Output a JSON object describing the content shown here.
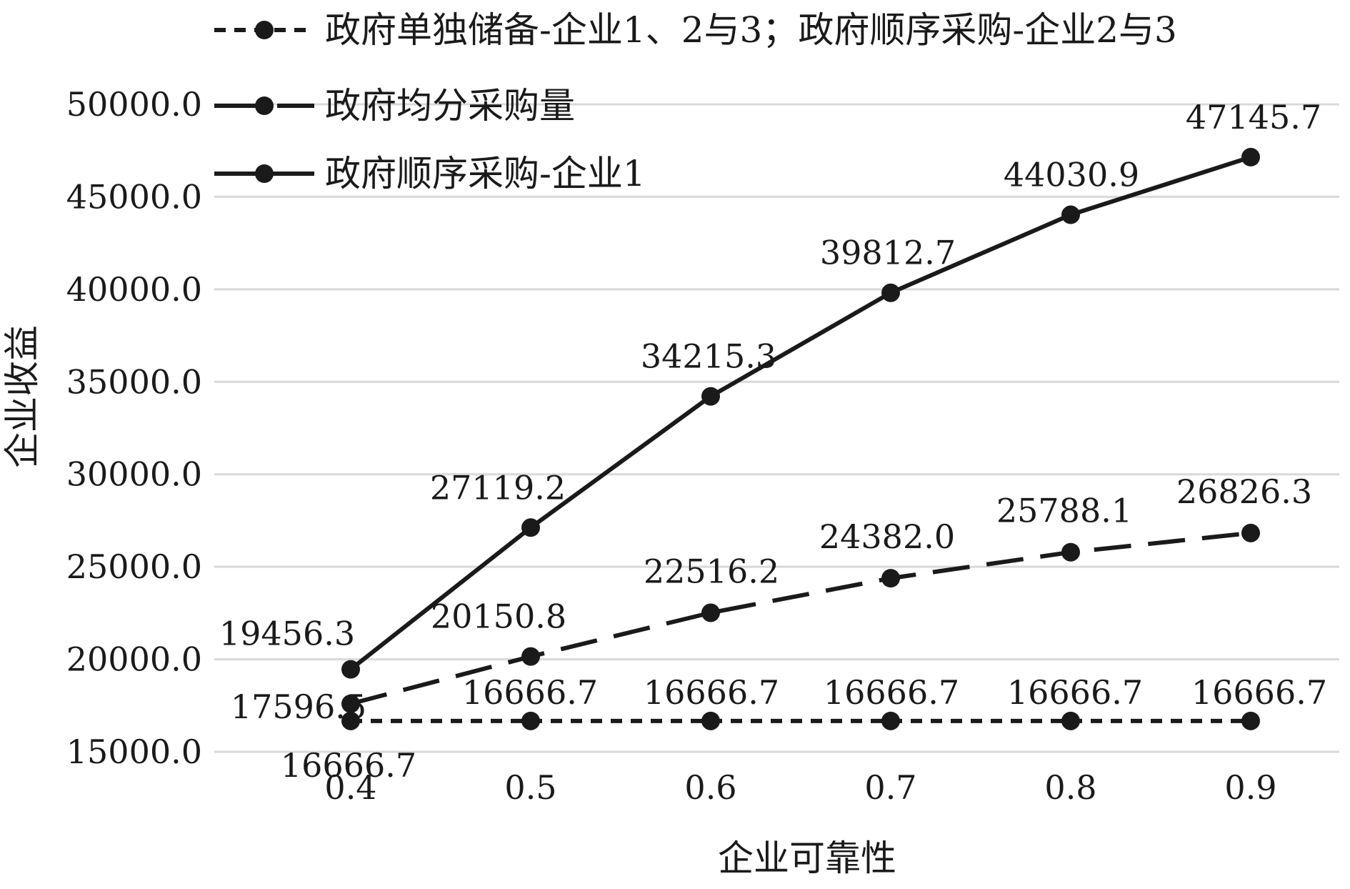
{
  "chart_data": {
    "type": "line",
    "title": "",
    "xlabel": "企业可靠性",
    "ylabel": "企业收益",
    "x": [
      "0.4",
      "0.5",
      "0.6",
      "0.7",
      "0.8",
      "0.9"
    ],
    "ylim": [
      15000,
      50000
    ],
    "yticks": [
      "50000.0",
      "45000.0",
      "40000.0",
      "35000.0",
      "30000.0",
      "25000.0",
      "20000.0",
      "15000.0"
    ],
    "grid": "horizontal",
    "legend_position": "top-left",
    "series": [
      {
        "name": "政府单独储备-企业1、2与3；政府顺序采购-企业2与3",
        "line_style": "short-dash",
        "values": [
          16666.7,
          16666.7,
          16666.7,
          16666.7,
          16666.7,
          16666.7
        ],
        "labels": [
          "16666.7",
          "16666.7",
          "16666.7",
          "16666.7",
          "16666.7",
          "16666.7"
        ]
      },
      {
        "name": "政府均分采购量",
        "line_style": "long-dash",
        "values": [
          17596.5,
          20150.8,
          22516.2,
          24382.0,
          25788.1,
          26826.3
        ],
        "labels": [
          "17596.5",
          "20150.8",
          "22516.2",
          "24382.0",
          "25788.1",
          "26826.3"
        ]
      },
      {
        "name": "政府顺序采购-企业1",
        "line_style": "solid",
        "values": [
          19456.3,
          27119.2,
          34215.3,
          39812.7,
          44030.9,
          47145.7
        ],
        "labels": [
          "19456.3",
          "27119.2",
          "34215.3",
          "39812.7",
          "44030.9",
          "47145.7"
        ]
      }
    ],
    "colors": {
      "line": "#1a1a1a",
      "grid": "#d9d9d9"
    }
  }
}
